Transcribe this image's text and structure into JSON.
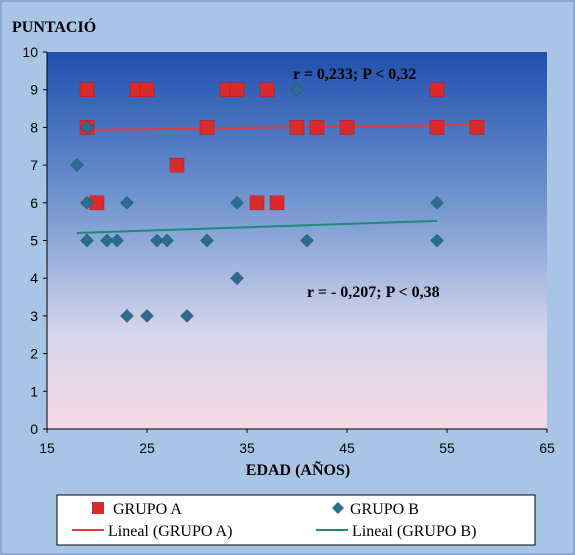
{
  "chart_data": {
    "type": "scatter",
    "title": "",
    "ylabel": "PUNTACIÓ",
    "xlabel": "EDAD (AÑOS)",
    "xlim": [
      15,
      65
    ],
    "ylim": [
      0,
      10
    ],
    "xticks": [
      15,
      25,
      35,
      45,
      55,
      65
    ],
    "yticks": [
      0,
      1,
      2,
      3,
      4,
      5,
      6,
      7,
      8,
      9,
      10
    ],
    "xtick_labels": [
      "15",
      "25",
      "35",
      "45",
      "55",
      "65"
    ],
    "ytick_labels": [
      "0",
      "1",
      "2",
      "3",
      "4",
      "5",
      "6",
      "7",
      "8",
      "9",
      "10"
    ],
    "grid": false,
    "legend_position": "bottom",
    "series": [
      {
        "name": "GRUPO A",
        "marker": "square",
        "color": "#d92b2b",
        "points": [
          [
            19,
            9
          ],
          [
            24,
            9
          ],
          [
            25,
            9
          ],
          [
            33,
            9
          ],
          [
            34,
            9
          ],
          [
            37,
            9
          ],
          [
            54,
            9
          ],
          [
            19,
            8
          ],
          [
            31,
            8
          ],
          [
            40,
            8
          ],
          [
            42,
            8
          ],
          [
            45,
            8
          ],
          [
            54,
            8
          ],
          [
            58,
            8
          ],
          [
            28,
            7
          ],
          [
            20,
            6
          ],
          [
            36,
            6
          ],
          [
            38,
            6
          ]
        ]
      },
      {
        "name": "GRUPO B",
        "marker": "diamond",
        "color": "#2c6d8f",
        "points": [
          [
            40,
            9
          ],
          [
            19,
            8
          ],
          [
            18,
            7
          ],
          [
            19,
            6
          ],
          [
            23,
            6
          ],
          [
            34,
            6
          ],
          [
            54,
            6
          ],
          [
            19,
            5
          ],
          [
            21,
            5
          ],
          [
            22,
            5
          ],
          [
            26,
            5
          ],
          [
            27,
            5
          ],
          [
            31,
            5
          ],
          [
            41,
            5
          ],
          [
            54,
            5
          ],
          [
            34,
            4
          ],
          [
            23,
            3
          ],
          [
            25,
            3
          ],
          [
            29,
            3
          ]
        ]
      }
    ],
    "trendlines": [
      {
        "name": "Lineal (GRUPO A)",
        "color": "#e23a3a",
        "x": [
          19,
          58
        ],
        "y": [
          7.93,
          8.07
        ]
      },
      {
        "name": "Lineal (GRUPO B)",
        "color": "#1f8a78",
        "x": [
          18,
          54
        ],
        "y": [
          5.2,
          5.52
        ]
      }
    ],
    "annotations": [
      {
        "text": "r =  0,233; P < 0,32"
      },
      {
        "text": "r = - 0,207; P < 0,38"
      }
    ],
    "legend": [
      {
        "label": "GRUPO A",
        "type": "square",
        "color": "#d92b2b"
      },
      {
        "label": "GRUPO B",
        "type": "diamond",
        "color": "#2c6d8f"
      },
      {
        "label": "Lineal (GRUPO A)",
        "type": "line",
        "color": "#e23a3a"
      },
      {
        "label": "Lineal (GRUPO B)",
        "type": "line",
        "color": "#1f8a78"
      }
    ]
  }
}
